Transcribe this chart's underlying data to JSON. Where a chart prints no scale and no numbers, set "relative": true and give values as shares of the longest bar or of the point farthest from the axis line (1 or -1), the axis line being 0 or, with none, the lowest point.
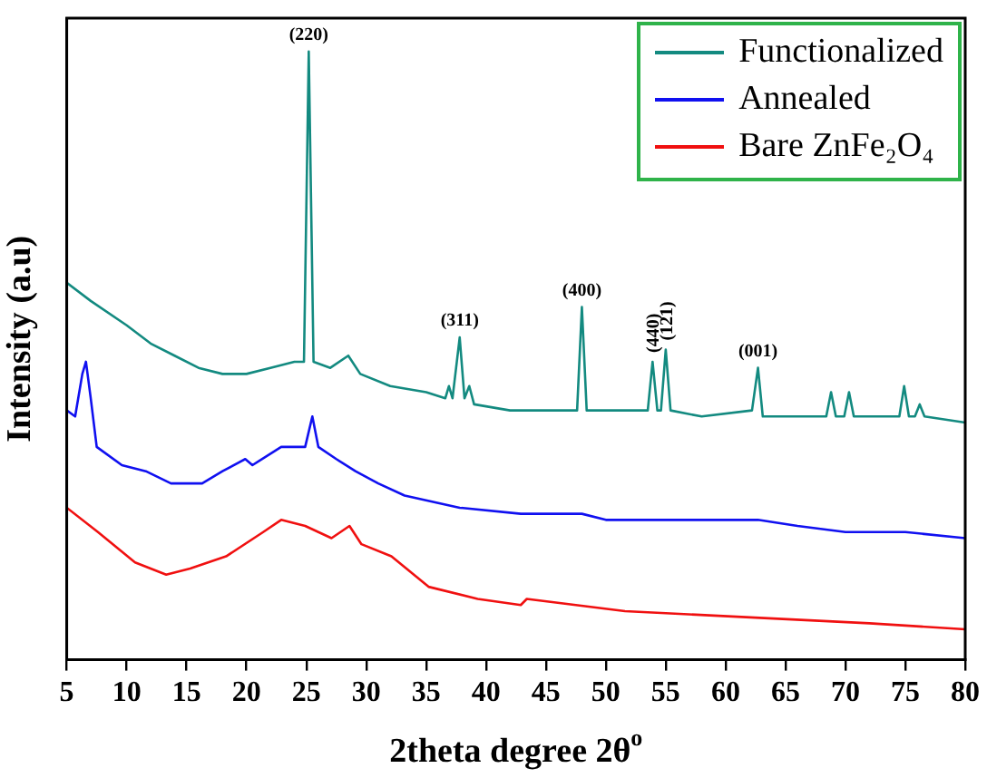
{
  "chart_data": {
    "type": "line",
    "relative": true,
    "xlabel": "2theta degree 2θ$^{o}$",
    "ylabel": "Intensity (a.u)",
    "xlim": [
      5,
      80
    ],
    "xticks": [
      5,
      10,
      15,
      20,
      25,
      30,
      35,
      40,
      45,
      50,
      55,
      60,
      65,
      70,
      75,
      80
    ],
    "legend": "top right",
    "grid": false,
    "marker": "none",
    "line_style": "solid",
    "series": [
      {
        "name": "Functionalized",
        "color": "#138a80",
        "x": [
          5,
          7,
          10,
          12,
          14,
          16,
          18,
          20,
          22,
          24,
          24.8,
          25.2,
          25.6,
          27,
          28.5,
          29.5,
          32,
          35,
          36.6,
          36.9,
          37.2,
          37.8,
          38.2,
          38.6,
          39,
          42,
          45,
          47.6,
          48,
          48.4,
          51,
          53.5,
          53.9,
          54.3,
          54.6,
          55,
          55.4,
          58,
          62.2,
          62.7,
          63.1,
          68.4,
          68.8,
          69.2,
          69.9,
          70.3,
          70.7,
          74.5,
          74.9,
          75.3,
          75.8,
          76.2,
          76.6,
          80
        ],
        "values": [
          0.62,
          0.59,
          0.55,
          0.52,
          0.5,
          0.48,
          0.47,
          0.47,
          0.48,
          0.49,
          0.49,
          1,
          0.49,
          0.48,
          0.5,
          0.47,
          0.45,
          0.44,
          0.43,
          0.45,
          0.43,
          0.53,
          0.43,
          0.45,
          0.42,
          0.41,
          0.41,
          0.41,
          0.58,
          0.41,
          0.41,
          0.41,
          0.49,
          0.41,
          0.41,
          0.51,
          0.41,
          0.4,
          0.41,
          0.48,
          0.4,
          0.4,
          0.44,
          0.4,
          0.4,
          0.44,
          0.4,
          0.4,
          0.45,
          0.4,
          0.4,
          0.42,
          0.4,
          0.39
        ]
      },
      {
        "name": "Annealed",
        "color": "#1010f0",
        "x": [
          5,
          5.7,
          6.3,
          6.6,
          7,
          7.5,
          9.6,
          11.6,
          13.7,
          16.3,
          18,
          19.9,
          20.5,
          22.9,
          24.9,
          25.5,
          26,
          27.5,
          29.1,
          31,
          33.2,
          37.8,
          42.9,
          48,
          50,
          54,
          55,
          58,
          62.7,
          66,
          70,
          75,
          80
        ],
        "values": [
          0.41,
          0.4,
          0.47,
          0.49,
          0.43,
          0.35,
          0.32,
          0.31,
          0.29,
          0.29,
          0.31,
          0.33,
          0.32,
          0.35,
          0.35,
          0.4,
          0.35,
          0.33,
          0.31,
          0.29,
          0.27,
          0.25,
          0.24,
          0.24,
          0.23,
          0.23,
          0.23,
          0.23,
          0.23,
          0.22,
          0.21,
          0.21,
          0.2
        ]
      },
      {
        "name": "Bare ZnFe₂O₄",
        "color": "#f01010",
        "x": [
          5,
          7.6,
          10.7,
          13.3,
          15.3,
          18.3,
          21.4,
          22.9,
          24.9,
          27.1,
          28.6,
          29.6,
          32.1,
          35.2,
          39.3,
          42.9,
          43.4,
          47.5,
          51.6,
          61.7,
          72,
          80
        ],
        "values": [
          0.25,
          0.21,
          0.16,
          0.14,
          0.15,
          0.17,
          0.21,
          0.23,
          0.22,
          0.2,
          0.22,
          0.19,
          0.17,
          0.12,
          0.1,
          0.09,
          0.1,
          0.09,
          0.08,
          0.07,
          0.06,
          0.05
        ]
      }
    ],
    "annotations": [
      {
        "text": "(220)",
        "x": 25.2,
        "y": 1
      },
      {
        "text": "(311)",
        "x": 37.8,
        "y": 0.53
      },
      {
        "text": "(400)",
        "x": 48,
        "y": 0.58
      },
      {
        "text": "(440)",
        "x": 53.9,
        "y": 0.49
      },
      {
        "text": "(121)",
        "x": 55,
        "y": 0.51
      },
      {
        "text": "(001)",
        "x": 62.7,
        "y": 0.48
      }
    ]
  }
}
